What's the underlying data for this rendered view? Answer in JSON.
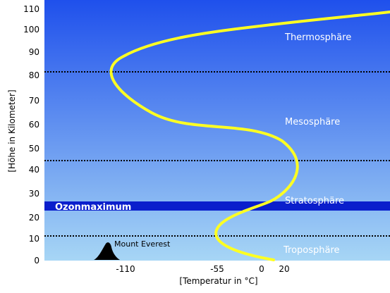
{
  "y_axis": {
    "title": "[Höhe in Kilometer]",
    "ticks": [
      "0",
      "10",
      "20",
      "30",
      "40",
      "50",
      "60",
      "70",
      "80",
      "90",
      "100",
      "110"
    ]
  },
  "x_axis": {
    "title": "[Temperatur in °C]",
    "ticks": [
      "-110",
      "-55",
      "0",
      "20"
    ]
  },
  "layers": {
    "thermosphere": "Thermosphäre",
    "mesosphere": "Mesosphäre",
    "stratosphere": "Stratosphäre",
    "troposphere": "Troposphäre"
  },
  "ozone_label": "Ozonmaximum",
  "everest_label": "Mount Everest",
  "boundaries_km": [
    11,
    45,
    82
  ],
  "ozone_band_km": [
    23.5,
    27
  ],
  "temperature_profile": [
    {
      "temp_c": 17,
      "height_km": 0
    },
    {
      "temp_c": -55,
      "height_km": 11
    },
    {
      "temp_c": 0,
      "height_km": 45
    },
    {
      "temp_c": -110,
      "height_km": 82
    },
    {
      "temp_c": 20,
      "height_km": 108
    }
  ],
  "colors": {
    "sky_top": "#1f50ec",
    "sky_bottom": "#a7d6f5",
    "curve": "#ffff22",
    "ozone_band": "#0a1ecc",
    "mountain": "#000000"
  }
}
